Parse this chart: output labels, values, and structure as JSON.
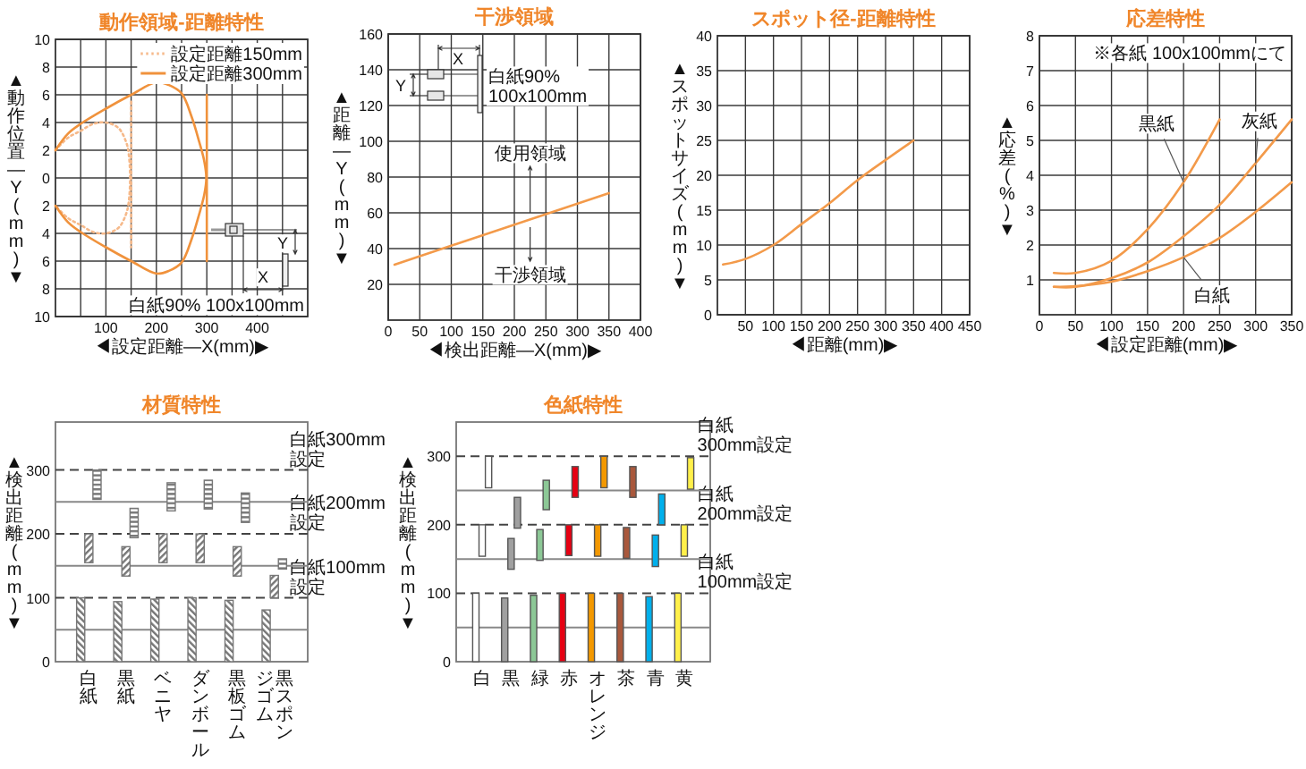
{
  "chart_data": [
    {
      "type": "line",
      "title": "動作領域-距離特性",
      "xlabel": "◀設定距離—X(mm)▶",
      "ylabel": "▲動作位置—Y(mm)▼",
      "xlim": [
        0,
        500
      ],
      "xticks": [
        {
          "value": 50,
          "label": null
        },
        100,
        {
          "value": 150,
          "label": null
        },
        200,
        {
          "value": 250,
          "label": null
        },
        300,
        {
          "value": 350,
          "label": null
        },
        400,
        {
          "value": 450,
          "label": null
        }
      ],
      "ylim": [
        -10,
        10
      ],
      "yticks": [
        {
          "value": -10,
          "label": "10"
        },
        {
          "value": -8,
          "label": "8"
        },
        {
          "value": -6,
          "label": "6"
        },
        {
          "value": -4,
          "label": "4"
        },
        {
          "value": -2,
          "label": "2"
        },
        0,
        2,
        4,
        6,
        8,
        10
      ],
      "grid": true,
      "legend": "top right",
      "series": [
        {
          "name": "設定距離150mm",
          "color": "#f6b98a",
          "line_style": "dotted",
          "x": [
            0,
            25,
            50,
            75,
            100,
            125,
            140,
            145,
            148,
            145,
            140,
            125,
            100,
            75,
            50,
            25,
            0
          ],
          "values": [
            2,
            2.9,
            3.4,
            3.9,
            4,
            3.6,
            2.6,
            1.8,
            0,
            -1.8,
            -2.6,
            -3.6,
            -4,
            -3.9,
            -3.4,
            -2.9,
            -2
          ]
        },
        {
          "name": "設定距離300mm",
          "color": "#f0923c",
          "line_style": "solid",
          "x": [
            0,
            25,
            50,
            100,
            150,
            200,
            225,
            250,
            270,
            285,
            295,
            299,
            295,
            285,
            270,
            250,
            225,
            200,
            150,
            100,
            50,
            25,
            0
          ],
          "values": [
            2,
            3.2,
            3.9,
            5,
            6,
            6.9,
            6.7,
            6.1,
            4.4,
            2.6,
            1.2,
            0,
            -1.2,
            -2.6,
            -4.4,
            -6.1,
            -6.7,
            -6.9,
            -6,
            -5,
            -3.9,
            -3.2,
            -2
          ]
        },
        {
          "color": "#f6b98a",
          "line_style": "dotted",
          "x": [
            150,
            150
          ],
          "values": [
            5.5,
            -5
          ]
        },
        {
          "color": "#f0923c",
          "line_style": "solid",
          "x": [
            300,
            300
          ],
          "values": [
            6,
            -6
          ]
        }
      ],
      "annotations": [
        "白紙90% 100x100mm",
        "X",
        "Y"
      ]
    },
    {
      "type": "line",
      "title": "干渉領域",
      "xlabel": "◀検出距離—X(mm)▶",
      "ylabel": "▲距離—Y(mm)▼",
      "xlim": [
        0,
        400
      ],
      "xticks": [
        0,
        50,
        100,
        150,
        200,
        250,
        300,
        350,
        400
      ],
      "ylim": [
        0,
        160
      ],
      "yticks": [
        20,
        40,
        60,
        80,
        100,
        120,
        140,
        160
      ],
      "grid": true,
      "series": [
        {
          "color": "#f39a4a",
          "x": [
            10,
            350
          ],
          "values": [
            31,
            71
          ]
        }
      ],
      "annotations": [
        {
          "text": "使用領域",
          "x": 225,
          "y": 56
        },
        {
          "text": "干渉領域",
          "x": 225,
          "y": 56
        },
        "白紙90%\n100x100mm",
        "X",
        "Y"
      ]
    },
    {
      "type": "line",
      "title": "スポット径-距離特性",
      "xlabel": "◀距離(mm)▶",
      "ylabel": "▲スポットサイズ(mm)▼",
      "xlim": [
        0,
        450
      ],
      "xticks": [
        50,
        100,
        150,
        200,
        250,
        300,
        350,
        400,
        450
      ],
      "ylim": [
        0,
        40
      ],
      "yticks": [
        0,
        5,
        10,
        15,
        20,
        25,
        30,
        35,
        40
      ],
      "grid": true,
      "series": [
        {
          "color": "#f39a4a",
          "x": [
            10,
            50,
            100,
            150,
            200,
            250,
            300,
            350
          ],
          "values": [
            7.2,
            8,
            10,
            13,
            16,
            19.3,
            22.2,
            25
          ]
        }
      ]
    },
    {
      "type": "line",
      "title": "応差特性",
      "xlabel": "◀設定距離(mm)▶",
      "ylabel": "▲応差(%)▼",
      "xlim": [
        0,
        350
      ],
      "xticks": [
        0,
        50,
        100,
        150,
        200,
        250,
        300,
        350
      ],
      "ylim": [
        0,
        8
      ],
      "yticks": [
        1,
        2,
        3,
        4,
        5,
        6,
        7,
        8
      ],
      "grid": true,
      "series": [
        {
          "name": "黒紙",
          "color": "#f39a4a",
          "x": [
            20,
            50,
            100,
            150,
            200,
            250
          ],
          "values": [
            1.2,
            1.2,
            1.55,
            2.45,
            3.8,
            5.6
          ]
        },
        {
          "name": "灰紙",
          "color": "#f39a4a",
          "x": [
            20,
            50,
            100,
            150,
            200,
            250,
            300,
            350
          ],
          "values": [
            0.8,
            0.8,
            1.05,
            1.5,
            2.25,
            3.15,
            4.35,
            5.6
          ]
        },
        {
          "name": "白紙",
          "color": "#f39a4a",
          "x": [
            20,
            50,
            100,
            150,
            200,
            250,
            300,
            350
          ],
          "values": [
            0.8,
            0.82,
            0.95,
            1.25,
            1.65,
            2.2,
            2.95,
            3.8
          ]
        }
      ],
      "annotations": [
        "※各紙 100x100mmにて"
      ]
    },
    {
      "type": "bar",
      "title": "材質特性",
      "ylabel": "▲検出距離(mm)▼",
      "categories": [
        "白紙",
        "黒紙",
        "ベニヤ",
        "ダンボール",
        "黒板ゴム",
        "黒スポンジゴム"
      ],
      "ylim": [
        0,
        375
      ],
      "yticks": [
        0,
        100,
        200,
        300
      ],
      "series": [
        {
          "color": "#777777",
          "values": [
            100,
            94,
            98,
            100,
            96,
            81
          ]
        },
        {
          "color": "#777777",
          "base": [
            155,
            134,
            155,
            155,
            134,
            100
          ],
          "values": [
            45,
            46,
            45,
            45,
            46,
            35
          ]
        },
        {
          "color": "#777777",
          "base": [
            254,
            194,
            236,
            239,
            218,
            145
          ],
          "values": [
            46,
            46,
            44,
            45,
            46,
            16
          ]
        }
      ],
      "ref_lines": [
        {
          "axis": "y",
          "value": 300,
          "label": "白紙300mm\n設定",
          "line_style": "dashed"
        },
        {
          "axis": "y",
          "value": 200,
          "label": "白紙200mm\n設定",
          "line_style": "dashed"
        },
        {
          "axis": "y",
          "value": 100,
          "label": "白紙100mm\n設定",
          "line_style": "dashed"
        },
        {
          "axis": "y",
          "value": 50
        },
        {
          "axis": "y",
          "value": 150
        },
        {
          "axis": "y",
          "value": 250
        }
      ]
    },
    {
      "type": "bar",
      "title": "色紙特性",
      "ylabel": "▲検出距離(mm)▼",
      "categories": [
        "白",
        "黒",
        "緑",
        "赤",
        "オレンジ",
        "茶",
        "青",
        "黄"
      ],
      "ylim": [
        0,
        350
      ],
      "yticks": [
        0,
        100,
        200,
        300
      ],
      "series": [
        {
          "colors": [
            "#ffffff",
            "#a0a0a0",
            "#8cc896",
            "#e60012",
            "#f39800",
            "#a9583c",
            "#00b0ec",
            "#fff04a"
          ],
          "values": [
            100,
            93,
            97,
            100,
            100,
            100,
            95,
            100
          ]
        },
        {
          "colors": [
            "#ffffff",
            "#a0a0a0",
            "#8cc896",
            "#e60012",
            "#f39800",
            "#a9583c",
            "#00b0ec",
            "#fff04a"
          ],
          "base": [
            154,
            135,
            148,
            155,
            154,
            151,
            139,
            154
          ],
          "values": [
            46,
            45,
            45,
            45,
            46,
            45,
            46,
            46
          ]
        },
        {
          "colors": [
            "#ffffff",
            "#a0a0a0",
            "#8cc896",
            "#e60012",
            "#f39800",
            "#a9583c",
            "#00b0ec",
            "#fff04a"
          ],
          "base": [
            254,
            195,
            222,
            240,
            254,
            240,
            200,
            252
          ],
          "values": [
            46,
            45,
            43,
            45,
            46,
            45,
            45,
            46
          ]
        }
      ],
      "ref_lines": [
        {
          "axis": "y",
          "value": 300,
          "label": "白紙\n300mm設定",
          "line_style": "dashed"
        },
        {
          "axis": "y",
          "value": 200,
          "label": "白紙\n200mm設定",
          "line_style": "dashed"
        },
        {
          "axis": "y",
          "value": 100,
          "label": "白紙\n100mm設定",
          "line_style": "dashed"
        },
        {
          "axis": "y",
          "value": 50
        },
        {
          "axis": "y",
          "value": 150
        },
        {
          "axis": "y",
          "value": 250
        }
      ]
    }
  ]
}
